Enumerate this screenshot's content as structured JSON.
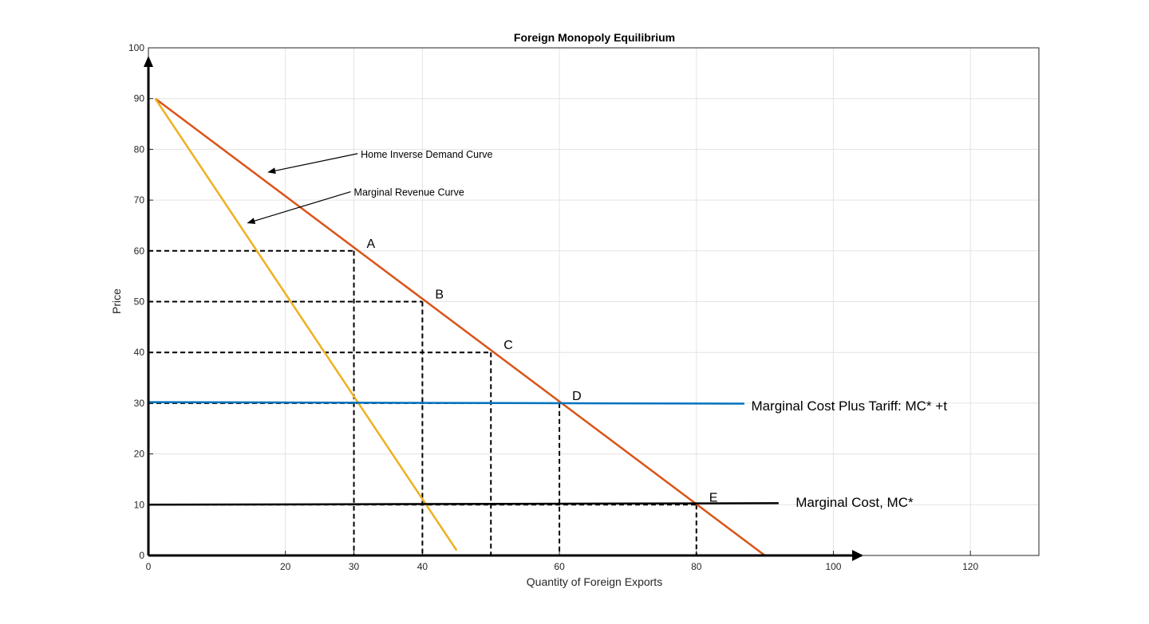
{
  "chart_data": {
    "type": "line",
    "title": "Foreign Monopoly Equilibrium",
    "xlabel": "Quantity of Foreign Exports",
    "ylabel": "Price",
    "xlim": [
      0,
      130
    ],
    "ylim": [
      0,
      100
    ],
    "x_ticks": [
      0,
      20,
      30,
      40,
      60,
      80,
      100,
      120
    ],
    "y_ticks": [
      0,
      10,
      20,
      30,
      40,
      50,
      60,
      70,
      80,
      90,
      100
    ],
    "grid": true,
    "colors": {
      "demand": "#D95319",
      "marginal_revenue": "#EDB120",
      "mc_plus_tariff": "#0072BD",
      "marginal_cost": "#000000",
      "grid": "#e3e3e3",
      "axis": "#000000"
    },
    "series": [
      {
        "key": "demand",
        "x": [
          1,
          90
        ],
        "y": [
          90,
          0
        ]
      },
      {
        "key": "marginal_revenue",
        "x": [
          1,
          45
        ],
        "y": [
          90,
          1
        ]
      },
      {
        "key": "mc_plus_tariff",
        "x": [
          0,
          87
        ],
        "y": [
          30.2,
          29.9
        ]
      },
      {
        "key": "marginal_cost",
        "x": [
          0,
          92
        ],
        "y": [
          10,
          10.3
        ]
      }
    ],
    "reference_lines": [
      {
        "x": 30,
        "y": 60
      },
      {
        "x": 40,
        "y": 50
      },
      {
        "x": 50,
        "y": 40
      },
      {
        "x": 60,
        "y": 30
      },
      {
        "x": 80,
        "y": 10
      }
    ],
    "points": [
      {
        "label": "A",
        "x": 30,
        "y": 60
      },
      {
        "label": "B",
        "x": 40,
        "y": 50
      },
      {
        "label": "C",
        "x": 50,
        "y": 40
      },
      {
        "label": "D",
        "x": 60,
        "y": 30
      },
      {
        "label": "E",
        "x": 80,
        "y": 10
      }
    ],
    "annotations": [
      {
        "text": "Home Inverse Demand Curve",
        "arrow_to": [
          17.5,
          75.5
        ],
        "text_at": [
          31,
          79
        ]
      },
      {
        "text": "Marginal Revenue Curve",
        "arrow_to": [
          14.5,
          65.5
        ],
        "text_at": [
          30,
          71.5
        ]
      },
      {
        "text": "Marginal Cost Plus Tariff:  MC* +t",
        "text_at": [
          88,
          29.5
        ]
      },
      {
        "text": "Marginal Cost, MC*",
        "text_at": [
          94.5,
          10.5
        ]
      }
    ]
  }
}
